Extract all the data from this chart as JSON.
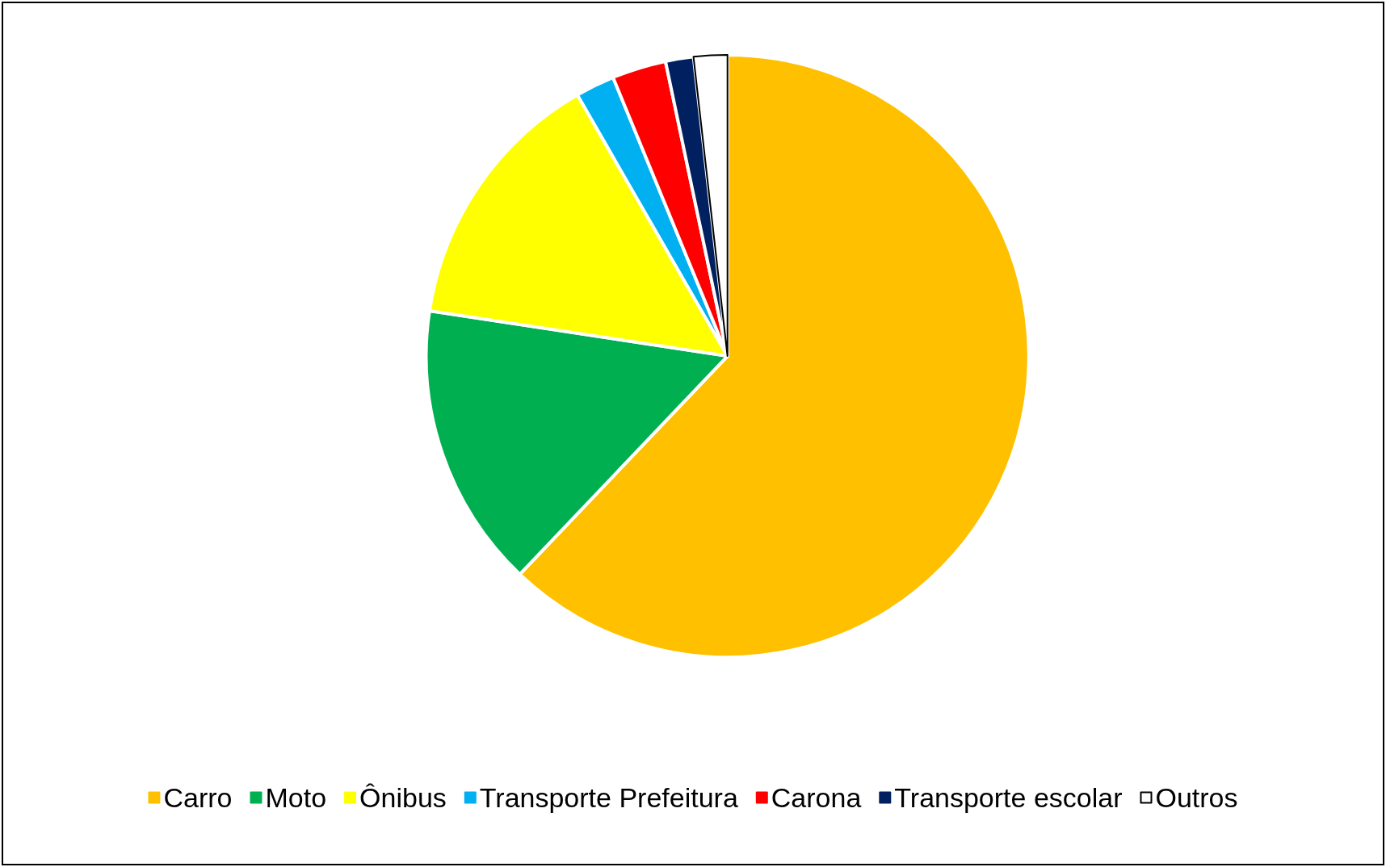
{
  "chart_data": {
    "type": "pie",
    "categories": [
      "Carro",
      "Moto",
      "Ônibus",
      "Transporte Prefeitura",
      "Carona",
      "Transporte escolar",
      "Outros"
    ],
    "values": [
      62.1,
      15.3,
      14.3,
      2.1,
      2.9,
      1.5,
      1.8
    ],
    "colors": [
      "#ffc000",
      "#00b050",
      "#ffff00",
      "#00b0f0",
      "#ff0000",
      "#002060",
      "#ffffff"
    ],
    "legend": "bottom"
  }
}
